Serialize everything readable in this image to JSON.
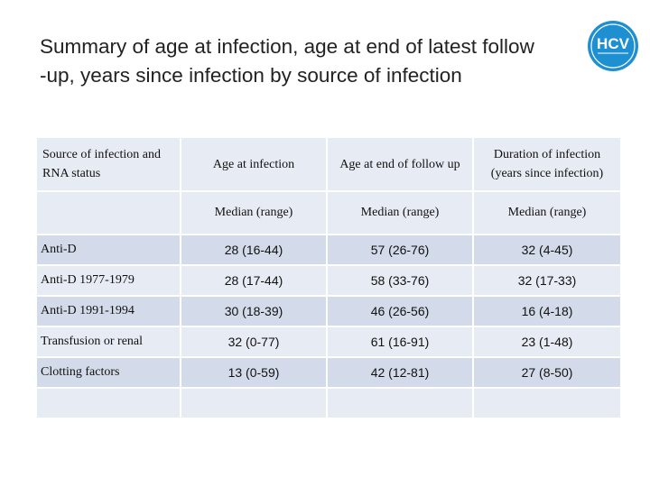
{
  "slide": {
    "title_line1": "Summary of age at infection, age at end of latest follow",
    "title_line2": "-up, years since infection by source of infection"
  },
  "logo": {
    "text": "HCV",
    "color": "#1e8fd0",
    "icon": "hcv-logo-icon"
  },
  "table": {
    "headers": [
      "Source of infection and RNA status",
      "Age at infection",
      "Age at end of follow up",
      "Duration of infection (years since infection)"
    ],
    "subheaders": [
      "",
      "Median (range)",
      "Median (range)",
      "Median (range)"
    ],
    "rows": [
      [
        "Anti-D",
        "28 (16-44)",
        "57 (26-76)",
        "32 (4-45)"
      ],
      [
        "Anti-D 1977-1979",
        "28 (17-44)",
        "58 (33-76)",
        "32 (17-33)"
      ],
      [
        "Anti-D 1991-1994",
        "30 (18-39)",
        "46 (26-56)",
        "16 (4-18)"
      ],
      [
        "Transfusion or renal",
        "32 (0-77)",
        "61 (16-91)",
        "23 (1-48)"
      ],
      [
        "Clotting factors",
        "13 (0-59)",
        "42 (12-81)",
        "27 (8-50)"
      ],
      [
        "",
        "",
        "",
        ""
      ]
    ],
    "colors": {
      "cell_light": "#e7ebf3",
      "cell_dark": "#d3dbea"
    }
  }
}
